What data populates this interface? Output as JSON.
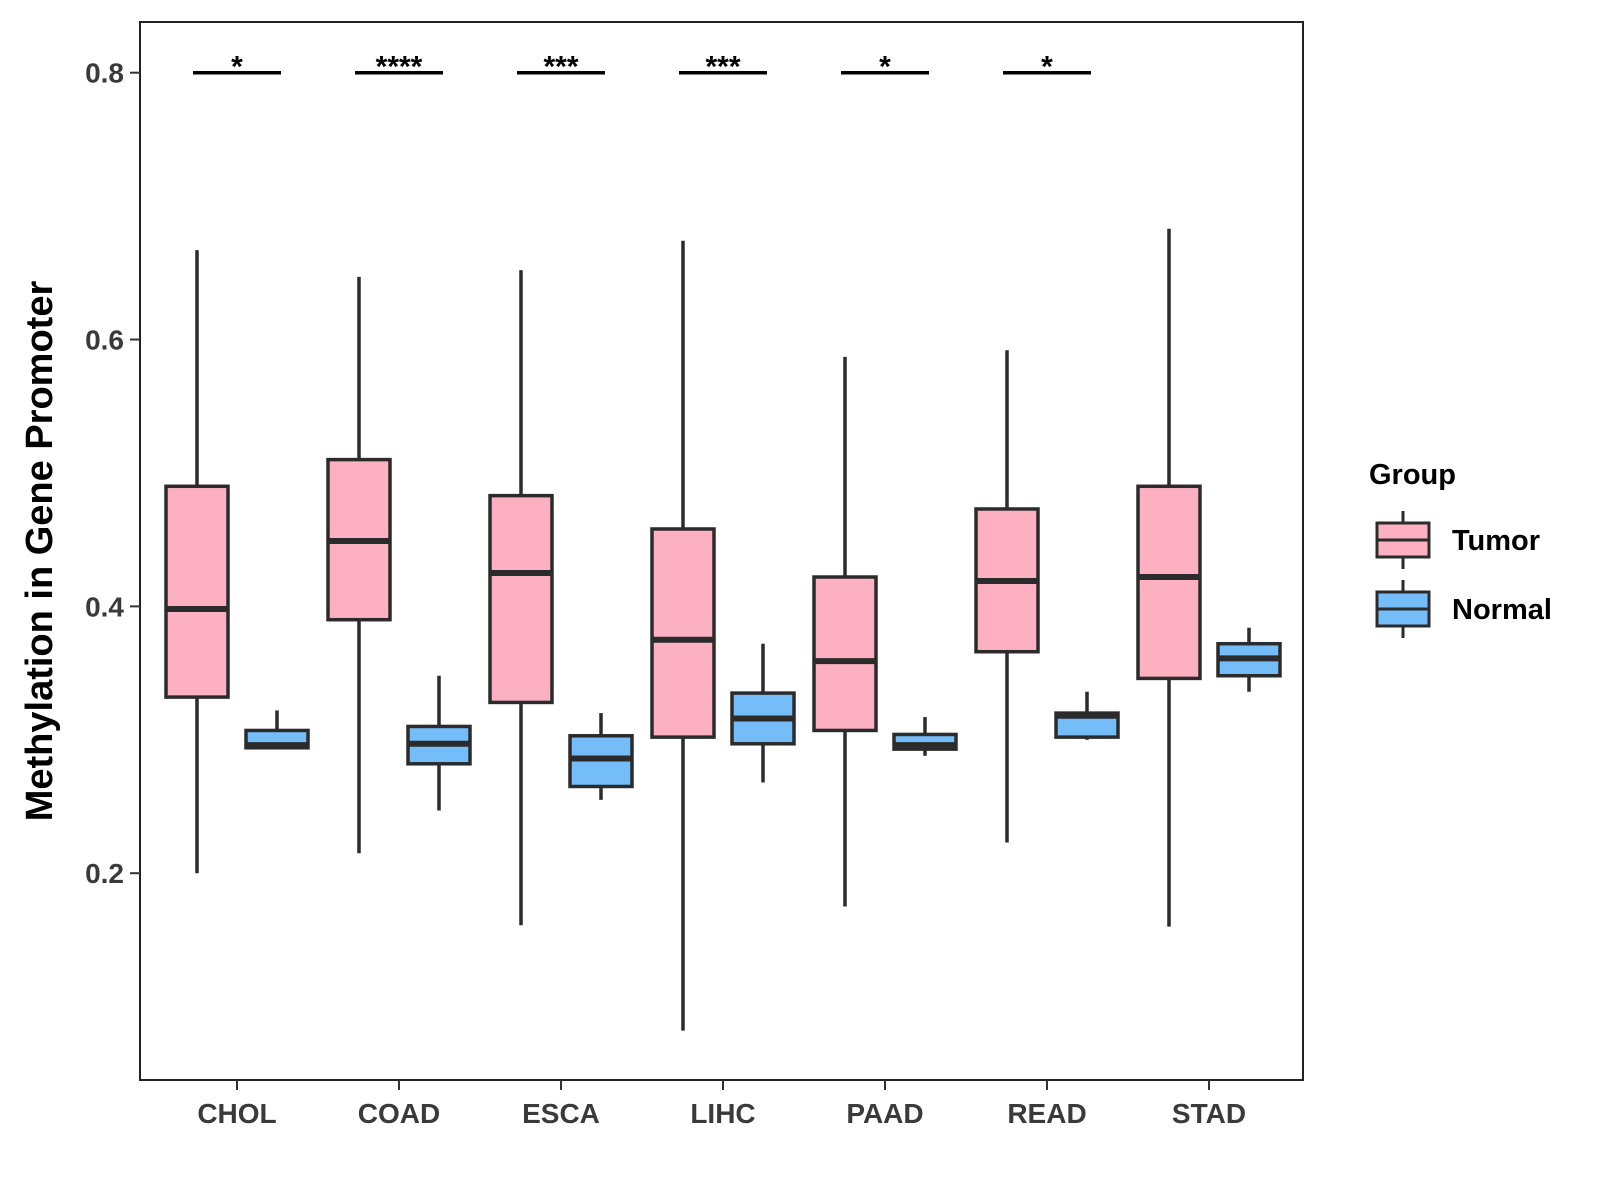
{
  "chart_data": {
    "type": "boxplot",
    "title": "",
    "xlabel": "",
    "ylabel": "Methylation in Gene Promoter",
    "ylim": [
      0.045,
      0.838
    ],
    "yticks": [
      0.2,
      0.4,
      0.6,
      0.8
    ],
    "ytick_labels": [
      "0.2",
      "0.4",
      "0.6",
      "0.8"
    ],
    "categories": [
      "CHOL",
      "COAD",
      "ESCA",
      "LIHC",
      "PAAD",
      "READ",
      "STAD"
    ],
    "legend": {
      "title": "Group",
      "position": "right",
      "items": [
        {
          "name": "Tumor",
          "color": "#FCB0C2"
        },
        {
          "name": "Normal",
          "color": "#74BDF8"
        }
      ]
    },
    "series": [
      {
        "name": "Tumor",
        "color": "#FCB0C2",
        "boxes": [
          {
            "min": 0.2,
            "q1": 0.332,
            "median": 0.398,
            "q3": 0.49,
            "max": 0.667
          },
          {
            "min": 0.215,
            "q1": 0.39,
            "median": 0.449,
            "q3": 0.51,
            "max": 0.647
          },
          {
            "min": 0.161,
            "q1": 0.328,
            "median": 0.425,
            "q3": 0.483,
            "max": 0.652
          },
          {
            "min": 0.082,
            "q1": 0.302,
            "median": 0.375,
            "q3": 0.458,
            "max": 0.674
          },
          {
            "min": 0.175,
            "q1": 0.307,
            "median": 0.359,
            "q3": 0.422,
            "max": 0.587
          },
          {
            "min": 0.223,
            "q1": 0.366,
            "median": 0.419,
            "q3": 0.473,
            "max": 0.592
          },
          {
            "min": 0.16,
            "q1": 0.346,
            "median": 0.422,
            "q3": 0.49,
            "max": 0.683
          }
        ]
      },
      {
        "name": "Normal",
        "color": "#74BDF8",
        "boxes": [
          {
            "min": 0.294,
            "q1": 0.294,
            "median": 0.296,
            "q3": 0.307,
            "max": 0.322
          },
          {
            "min": 0.247,
            "q1": 0.282,
            "median": 0.297,
            "q3": 0.31,
            "max": 0.348
          },
          {
            "min": 0.255,
            "q1": 0.265,
            "median": 0.286,
            "q3": 0.303,
            "max": 0.32
          },
          {
            "min": 0.268,
            "q1": 0.297,
            "median": 0.316,
            "q3": 0.335,
            "max": 0.372
          },
          {
            "min": 0.288,
            "q1": 0.293,
            "median": 0.296,
            "q3": 0.304,
            "max": 0.317
          },
          {
            "min": 0.3,
            "q1": 0.302,
            "median": 0.318,
            "q3": 0.32,
            "max": 0.336
          },
          {
            "min": 0.336,
            "q1": 0.348,
            "median": 0.361,
            "q3": 0.372,
            "max": 0.384
          }
        ]
      }
    ],
    "significance": [
      {
        "category": "CHOL",
        "label": "*",
        "y": 0.8
      },
      {
        "category": "COAD",
        "label": "****",
        "y": 0.8
      },
      {
        "category": "ESCA",
        "label": "***",
        "y": 0.8
      },
      {
        "category": "LIHC",
        "label": "***",
        "y": 0.8
      },
      {
        "category": "PAAD",
        "label": "*",
        "y": 0.8
      },
      {
        "category": "READ",
        "label": "*",
        "y": 0.8
      }
    ]
  }
}
